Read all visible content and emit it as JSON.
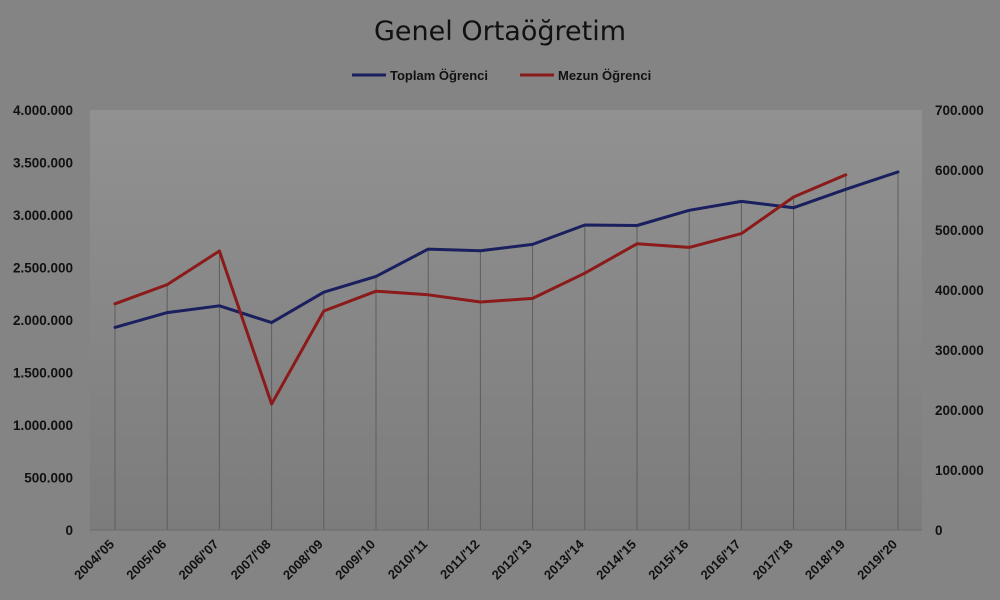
{
  "chart_data": {
    "type": "line",
    "title": "Genel Ortaöğretim",
    "categories": [
      "2004/'05",
      "2005/'06",
      "2006/'07",
      "2007/'08",
      "2008/'09",
      "2009/'10",
      "2010/'11",
      "2011/'12",
      "2012/'13",
      "2013/'14",
      "2014/'15",
      "2015/'16",
      "2016/'17",
      "2017/'18",
      "2018/'19",
      "2019/'20"
    ],
    "series": [
      {
        "name": "Toplam Öğrenci",
        "axis": "left",
        "color": "#1a1f5e",
        "values": [
          1930000,
          2070000,
          2135000,
          1975000,
          2265000,
          2415000,
          2675000,
          2660000,
          2720000,
          2905000,
          2900000,
          3045000,
          3130000,
          3070000,
          3245000,
          3410000
        ]
      },
      {
        "name": "Mezun Öğrenci",
        "axis": "right",
        "color": "#8b1a1a",
        "values": [
          377000,
          409000,
          465000,
          210000,
          365000,
          398000,
          392000,
          380000,
          386000,
          428000,
          477000,
          471000,
          494000,
          555000,
          592000,
          null
        ]
      }
    ],
    "y_left": {
      "min": 0,
      "max": 4000000,
      "ticks": [
        "0",
        "500.000",
        "1.000.000",
        "1.500.000",
        "2.000.000",
        "2.500.000",
        "3.000.000",
        "3.500.000",
        "4.000.000"
      ]
    },
    "y_right": {
      "min": 0,
      "max": 700000,
      "ticks": [
        "0",
        "100.000",
        "200.000",
        "300.000",
        "400.000",
        "500.000",
        "600.000",
        "700.000"
      ]
    },
    "grid": "vertical-drop-lines",
    "legend": "top-center",
    "background": "#848484",
    "plot_background_top": "#919191",
    "plot_background_bottom": "#7c7c7c"
  }
}
